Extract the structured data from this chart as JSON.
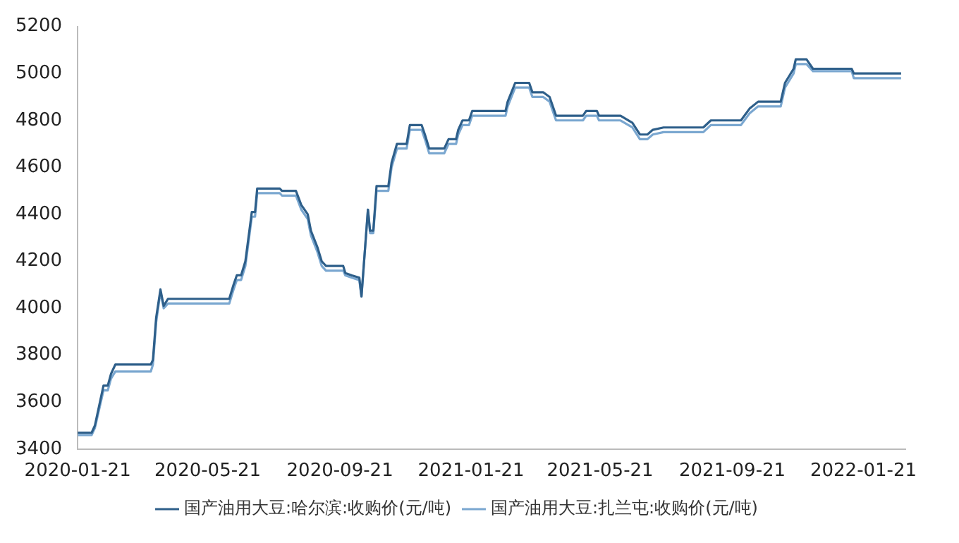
{
  "chart_data": {
    "type": "line",
    "x": [
      "2020-01-21",
      "2020-02-03",
      "2020-02-06",
      "2020-02-14",
      "2020-02-18",
      "2020-02-21",
      "2020-02-25",
      "2020-03-29",
      "2020-03-31",
      "2020-04-03",
      "2020-04-07",
      "2020-04-10",
      "2020-04-14",
      "2020-06-10",
      "2020-06-14",
      "2020-06-17",
      "2020-06-21",
      "2020-06-25",
      "2020-07-01",
      "2020-07-04",
      "2020-07-06",
      "2020-07-27",
      "2020-07-29",
      "2020-08-11",
      "2020-08-16",
      "2020-08-22",
      "2020-08-25",
      "2020-08-31",
      "2020-09-04",
      "2020-09-08",
      "2020-09-24",
      "2020-09-26",
      "2020-10-02",
      "2020-10-09",
      "2020-10-11",
      "2020-10-17",
      "2020-10-19",
      "2020-10-22",
      "2020-10-25",
      "2020-11-05",
      "2020-11-08",
      "2020-11-13",
      "2020-11-22",
      "2020-11-25",
      "2020-12-06",
      "2020-12-09",
      "2020-12-13",
      "2020-12-27",
      "2020-12-31",
      "2021-01-07",
      "2021-01-09",
      "2021-01-13",
      "2021-01-19",
      "2021-01-22",
      "2021-02-22",
      "2021-02-24",
      "2021-03-03",
      "2021-03-16",
      "2021-03-19",
      "2021-03-29",
      "2021-04-04",
      "2021-04-10",
      "2021-05-05",
      "2021-05-08",
      "2021-05-18",
      "2021-05-20",
      "2021-06-09",
      "2021-06-20",
      "2021-06-27",
      "2021-07-04",
      "2021-07-09",
      "2021-07-19",
      "2021-08-25",
      "2021-09-01",
      "2021-09-29",
      "2021-10-07",
      "2021-10-15",
      "2021-11-05",
      "2021-11-09",
      "2021-11-17",
      "2021-11-19",
      "2021-11-29",
      "2021-12-05",
      "2022-01-10",
      "2022-01-12",
      "2022-02-25"
    ],
    "series": [
      {
        "name": "国产油用大豆:哈尔滨:收购价(元/吨)",
        "color": "#2e5f8a",
        "values": [
          3470,
          3470,
          3500,
          3670,
          3670,
          3720,
          3760,
          3760,
          3780,
          3960,
          4080,
          4010,
          4040,
          4040,
          4100,
          4140,
          4140,
          4200,
          4410,
          4410,
          4510,
          4510,
          4500,
          4500,
          4440,
          4400,
          4330,
          4260,
          4200,
          4180,
          4180,
          4150,
          4140,
          4130,
          4050,
          4420,
          4330,
          4330,
          4520,
          4520,
          4620,
          4700,
          4700,
          4780,
          4780,
          4740,
          4680,
          4680,
          4720,
          4720,
          4760,
          4800,
          4800,
          4840,
          4840,
          4880,
          4960,
          4960,
          4920,
          4920,
          4900,
          4820,
          4820,
          4840,
          4840,
          4820,
          4820,
          4790,
          4740,
          4740,
          4760,
          4770,
          4770,
          4800,
          4800,
          4850,
          4880,
          4880,
          4960,
          5020,
          5060,
          5060,
          5020,
          5020,
          5000,
          5000
        ]
      },
      {
        "name": "国产油用大豆:扎兰屯:收购价(元/吨)",
        "color": "#7aa7d0",
        "values": [
          3460,
          3460,
          3490,
          3650,
          3650,
          3700,
          3730,
          3730,
          3760,
          3940,
          4070,
          4000,
          4020,
          4020,
          4080,
          4120,
          4120,
          4180,
          4390,
          4390,
          4490,
          4490,
          4480,
          4480,
          4420,
          4380,
          4310,
          4240,
          4180,
          4160,
          4160,
          4140,
          4130,
          4120,
          4050,
          4420,
          4320,
          4320,
          4500,
          4500,
          4600,
          4680,
          4680,
          4760,
          4760,
          4720,
          4660,
          4660,
          4700,
          4700,
          4740,
          4780,
          4780,
          4820,
          4820,
          4860,
          4940,
          4940,
          4900,
          4900,
          4880,
          4800,
          4800,
          4820,
          4820,
          4800,
          4800,
          4770,
          4720,
          4720,
          4740,
          4750,
          4750,
          4780,
          4780,
          4830,
          4860,
          4860,
          4940,
          5000,
          5040,
          5040,
          5010,
          5010,
          4980,
          4980
        ]
      }
    ],
    "xlim": [
      "2020-01-21",
      "2022-03-01"
    ],
    "xticks": [
      "2020-01-21",
      "2020-05-21",
      "2020-09-21",
      "2021-01-21",
      "2021-05-21",
      "2021-09-21",
      "2022-01-21"
    ],
    "ylim": [
      3400,
      5200
    ],
    "yticks": [
      3400,
      3600,
      3800,
      4000,
      4200,
      4400,
      4600,
      4800,
      5000,
      5200
    ],
    "grid": false,
    "legend": "bottom",
    "marker": "none",
    "line_style": "solid"
  }
}
